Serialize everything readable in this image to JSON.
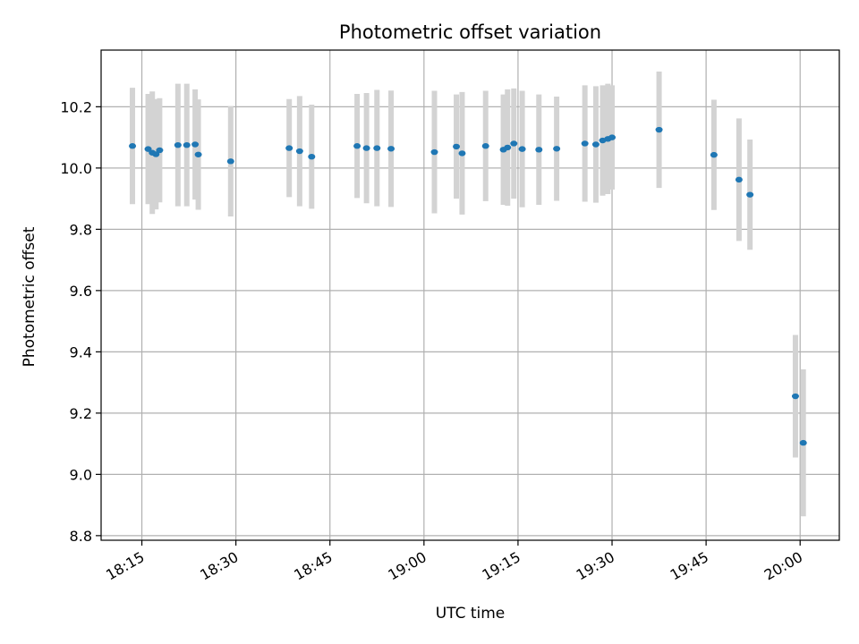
{
  "chart_data": {
    "type": "scatter",
    "title": "Photometric offset variation",
    "xlabel": "UTC time",
    "ylabel": "Photometric offset",
    "x_ticks": [
      "18:15",
      "18:30",
      "18:45",
      "19:00",
      "19:15",
      "19:30",
      "19:45",
      "20:00"
    ],
    "y_ticks": [
      "8.8",
      "9.0",
      "9.2",
      "9.4",
      "9.6",
      "9.8",
      "10.0",
      "10.2"
    ],
    "xlim": [
      "18:08:30",
      "20:06:15"
    ],
    "ylim": [
      8.785,
      10.385
    ],
    "grid": true,
    "marker_color": "#1f77b4",
    "errorbar_color": "#d3d3d3",
    "points": [
      {
        "x": "18:13:30",
        "y": 10.072,
        "err": 0.19
      },
      {
        "x": "18:16:00",
        "y": 10.062,
        "err": 0.18
      },
      {
        "x": "18:16:40",
        "y": 10.05,
        "err": 0.2
      },
      {
        "x": "18:17:15",
        "y": 10.045,
        "err": 0.18
      },
      {
        "x": "18:17:50",
        "y": 10.058,
        "err": 0.17
      },
      {
        "x": "18:20:45",
        "y": 10.075,
        "err": 0.2
      },
      {
        "x": "18:22:10",
        "y": 10.075,
        "err": 0.2
      },
      {
        "x": "18:23:30",
        "y": 10.077,
        "err": 0.18
      },
      {
        "x": "18:24:00",
        "y": 10.044,
        "err": 0.18
      },
      {
        "x": "18:29:10",
        "y": 10.022,
        "err": 0.18
      },
      {
        "x": "18:38:30",
        "y": 10.065,
        "err": 0.16
      },
      {
        "x": "18:40:10",
        "y": 10.055,
        "err": 0.18
      },
      {
        "x": "18:42:05",
        "y": 10.037,
        "err": 0.17
      },
      {
        "x": "18:49:20",
        "y": 10.072,
        "err": 0.17
      },
      {
        "x": "18:50:50",
        "y": 10.065,
        "err": 0.18
      },
      {
        "x": "18:52:30",
        "y": 10.065,
        "err": 0.19
      },
      {
        "x": "18:54:45",
        "y": 10.063,
        "err": 0.19
      },
      {
        "x": "19:01:40",
        "y": 10.052,
        "err": 0.2
      },
      {
        "x": "19:05:10",
        "y": 10.07,
        "err": 0.17
      },
      {
        "x": "19:06:05",
        "y": 10.048,
        "err": 0.2
      },
      {
        "x": "19:09:50",
        "y": 10.072,
        "err": 0.18
      },
      {
        "x": "19:12:40",
        "y": 10.06,
        "err": 0.18
      },
      {
        "x": "19:13:20",
        "y": 10.067,
        "err": 0.19
      },
      {
        "x": "19:14:20",
        "y": 10.08,
        "err": 0.18
      },
      {
        "x": "19:15:40",
        "y": 10.062,
        "err": 0.19
      },
      {
        "x": "19:18:20",
        "y": 10.06,
        "err": 0.18
      },
      {
        "x": "19:21:10",
        "y": 10.063,
        "err": 0.17
      },
      {
        "x": "19:25:40",
        "y": 10.08,
        "err": 0.19
      },
      {
        "x": "19:27:25",
        "y": 10.077,
        "err": 0.19
      },
      {
        "x": "19:28:30",
        "y": 10.09,
        "err": 0.18
      },
      {
        "x": "19:29:20",
        "y": 10.095,
        "err": 0.18
      },
      {
        "x": "19:30:00",
        "y": 10.1,
        "err": 0.17
      },
      {
        "x": "19:37:30",
        "y": 10.125,
        "err": 0.19
      },
      {
        "x": "19:46:15",
        "y": 10.043,
        "err": 0.18
      },
      {
        "x": "19:50:15",
        "y": 9.962,
        "err": 0.2
      },
      {
        "x": "19:52:00",
        "y": 9.913,
        "err": 0.18
      },
      {
        "x": "19:59:15",
        "y": 9.255,
        "err": 0.2
      },
      {
        "x": "20:00:30",
        "y": 9.103,
        "err": 0.24
      }
    ]
  }
}
